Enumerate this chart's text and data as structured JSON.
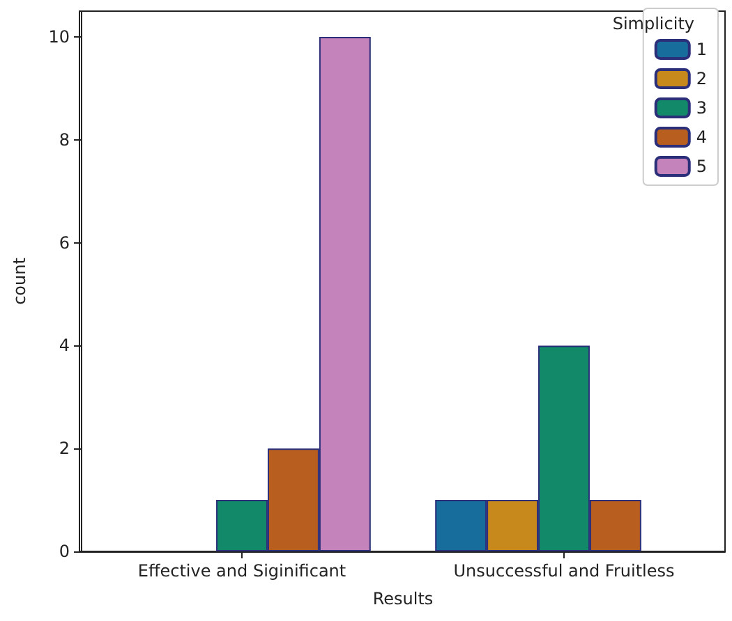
{
  "chart_data": {
    "type": "bar",
    "xlabel": "Results",
    "ylabel": "count",
    "legend_title": "Simplicity",
    "categories": [
      "Effective and Siginificant",
      "Unsuccessful and Fruitless"
    ],
    "series": [
      {
        "name": "1",
        "color": "#176d9c",
        "values": [
          null,
          1
        ]
      },
      {
        "name": "2",
        "color": "#c8891c",
        "values": [
          null,
          1
        ]
      },
      {
        "name": "3",
        "color": "#128a6a",
        "values": [
          1,
          4
        ]
      },
      {
        "name": "4",
        "color": "#b85f20",
        "values": [
          2,
          1
        ]
      },
      {
        "name": "5",
        "color": "#c483ba",
        "values": [
          10,
          null
        ]
      }
    ],
    "ylim": [
      0,
      10.5
    ],
    "yticks": [
      0,
      2,
      4,
      6,
      8,
      10
    ],
    "grid": false,
    "legend": "top right"
  }
}
